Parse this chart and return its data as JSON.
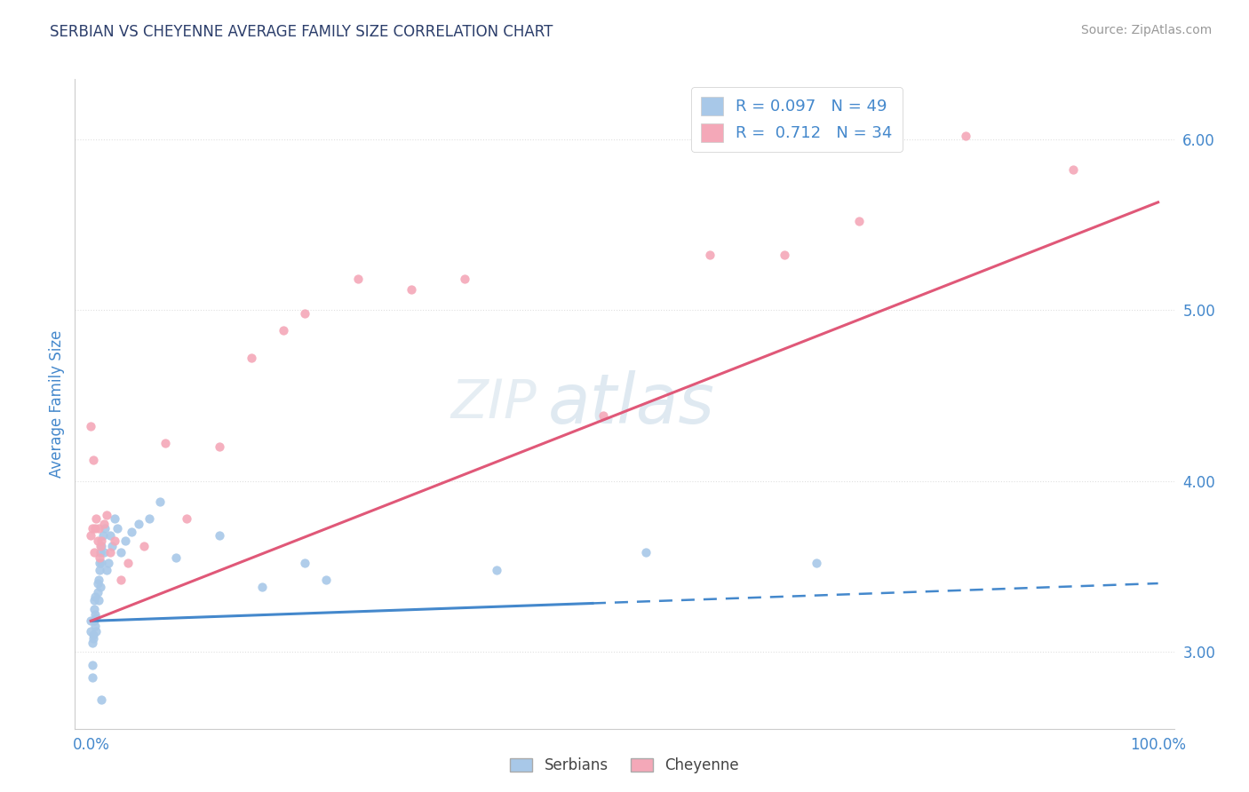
{
  "title": "SERBIAN VS CHEYENNE AVERAGE FAMILY SIZE CORRELATION CHART",
  "source": "Source: ZipAtlas.com",
  "ylabel": "Average Family Size",
  "legend_labels": [
    "Serbians",
    "Cheyenne"
  ],
  "serbian_R": "0.097",
  "serbian_N": "49",
  "cheyenne_R": "0.712",
  "cheyenne_N": "34",
  "right_yticks": [
    3.0,
    4.0,
    5.0,
    6.0
  ],
  "serbian_color": "#a8c8e8",
  "cheyenne_color": "#f4a8b8",
  "serbian_line_color": "#4488cc",
  "cheyenne_line_color": "#e05878",
  "title_color": "#2c3e6b",
  "source_color": "#999999",
  "axis_label_color": "#4488cc",
  "background_color": "#ffffff",
  "grid_color": "#e0e0e0",
  "watermark_zip_color": "#d0e4f4",
  "watermark_atlas_color": "#b8d0ec",
  "ylim": [
    2.55,
    6.35
  ],
  "xlim": [
    -0.015,
    1.015
  ],
  "serbian_line_solid_end": 0.47,
  "cheyenne_line_b": 3.18,
  "cheyenne_line_m": 2.45,
  "serbian_line_b": 3.18,
  "serbian_line_m": 0.22,
  "serbian_points_x": [
    0.0,
    0.0,
    0.001,
    0.001,
    0.001,
    0.002,
    0.002,
    0.003,
    0.003,
    0.003,
    0.004,
    0.004,
    0.004,
    0.005,
    0.005,
    0.006,
    0.006,
    0.007,
    0.007,
    0.008,
    0.008,
    0.009,
    0.009,
    0.01,
    0.01,
    0.011,
    0.012,
    0.013,
    0.015,
    0.016,
    0.018,
    0.02,
    0.022,
    0.025,
    0.028,
    0.032,
    0.038,
    0.045,
    0.055,
    0.065,
    0.08,
    0.12,
    0.16,
    0.2,
    0.22,
    0.38,
    0.52,
    0.68,
    0.01
  ],
  "serbian_points_y": [
    3.18,
    3.12,
    2.92,
    2.85,
    3.05,
    3.1,
    3.08,
    3.18,
    3.25,
    3.3,
    3.15,
    3.22,
    3.32,
    3.2,
    3.12,
    3.35,
    3.4,
    3.42,
    3.3,
    3.48,
    3.52,
    3.58,
    3.38,
    3.62,
    3.52,
    3.68,
    3.58,
    3.72,
    3.48,
    3.52,
    3.68,
    3.62,
    3.78,
    3.72,
    3.58,
    3.65,
    3.7,
    3.75,
    3.78,
    3.88,
    3.55,
    3.68,
    3.38,
    3.52,
    3.42,
    3.48,
    3.58,
    3.52,
    2.72
  ],
  "cheyenne_points_x": [
    0.0,
    0.0,
    0.001,
    0.002,
    0.003,
    0.004,
    0.005,
    0.006,
    0.007,
    0.008,
    0.009,
    0.01,
    0.012,
    0.015,
    0.018,
    0.022,
    0.028,
    0.035,
    0.05,
    0.07,
    0.09,
    0.12,
    0.15,
    0.18,
    0.2,
    0.25,
    0.3,
    0.35,
    0.48,
    0.58,
    0.65,
    0.72,
    0.82,
    0.92
  ],
  "cheyenne_points_y": [
    4.32,
    3.68,
    3.72,
    4.12,
    3.58,
    3.72,
    3.78,
    3.65,
    3.72,
    3.55,
    3.62,
    3.65,
    3.75,
    3.8,
    3.58,
    3.65,
    3.42,
    3.52,
    3.62,
    4.22,
    3.78,
    4.2,
    4.72,
    4.88,
    4.98,
    5.18,
    5.12,
    5.18,
    4.38,
    5.32,
    5.32,
    5.52,
    6.02,
    5.82
  ]
}
